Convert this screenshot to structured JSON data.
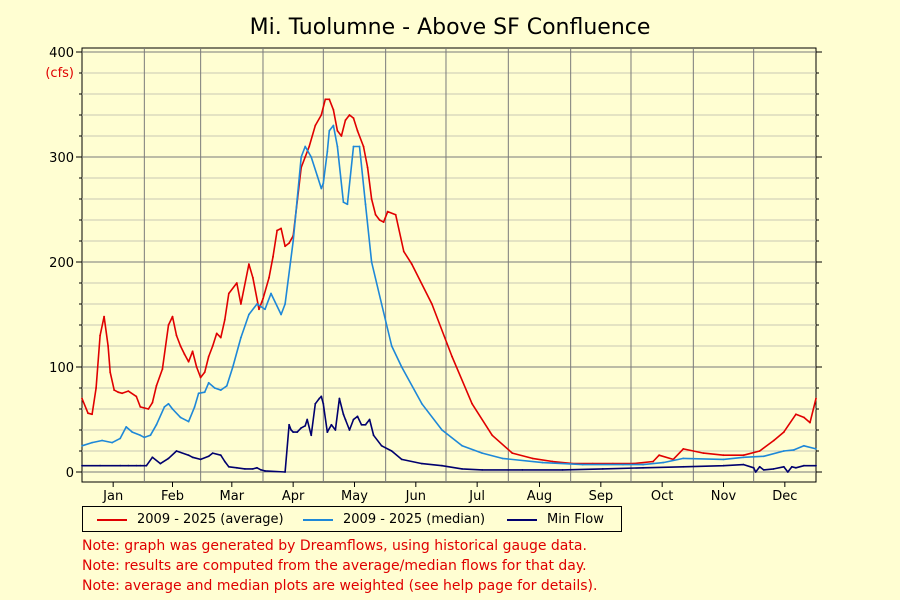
{
  "chart_data": {
    "type": "line",
    "title": "Mi. Tuolumne - Above SF Confluence",
    "ylabel": "(cfs)",
    "xlabel": "",
    "ylim": [
      0,
      400
    ],
    "yticks": [
      0,
      100,
      200,
      300,
      400
    ],
    "xlim": [
      1,
      366
    ],
    "grid": true,
    "legend_position": "bottom",
    "month_labels": [
      "Jan",
      "Feb",
      "Mar",
      "Apr",
      "May",
      "Jun",
      "Jul",
      "Aug",
      "Sep",
      "Oct",
      "Nov",
      "Dec"
    ],
    "series": [
      {
        "name": "2009 - 2025 (average)",
        "color": "#e00000",
        "x": [
          1,
          4,
          6,
          8,
          10,
          12,
          14,
          15,
          17,
          19,
          21,
          24,
          28,
          30,
          34,
          36,
          38,
          41,
          44,
          46,
          48,
          50,
          52,
          54,
          56,
          58,
          60,
          62,
          64,
          66,
          68,
          70,
          72,
          74,
          78,
          80,
          84,
          86,
          89,
          91,
          94,
          96,
          98,
          100,
          102,
          104,
          106,
          110,
          112,
          114,
          117,
          120,
          122,
          124,
          126,
          128,
          130,
          132,
          134,
          136,
          138,
          141,
          143,
          145,
          147,
          149,
          151,
          153,
          157,
          161,
          165,
          175,
          185,
          195,
          205,
          215,
          225,
          235,
          245,
          255,
          265,
          275,
          285,
          288,
          295,
          300,
          310,
          320,
          330,
          338,
          345,
          350,
          356,
          360,
          363,
          366
        ],
        "values": [
          70,
          56,
          55,
          80,
          130,
          148,
          120,
          95,
          78,
          76,
          75,
          77,
          72,
          62,
          60,
          66,
          82,
          98,
          140,
          148,
          130,
          120,
          112,
          105,
          115,
          100,
          90,
          95,
          110,
          120,
          132,
          128,
          145,
          170,
          180,
          160,
          198,
          185,
          155,
          165,
          185,
          205,
          230,
          232,
          215,
          218,
          225,
          290,
          300,
          310,
          330,
          340,
          355,
          355,
          345,
          325,
          320,
          335,
          340,
          337,
          325,
          310,
          290,
          260,
          245,
          240,
          238,
          248,
          245,
          210,
          198,
          160,
          110,
          65,
          35,
          18,
          13,
          10,
          8,
          8,
          8,
          8,
          10,
          16,
          12,
          22,
          18,
          16,
          16,
          20,
          30,
          38,
          55,
          52,
          47,
          70
        ]
      },
      {
        "name": "2009 - 2025 (median)",
        "color": "#1e88d8",
        "x": [
          1,
          6,
          11,
          16,
          20,
          23,
          26,
          30,
          32,
          35,
          38,
          42,
          44,
          46,
          50,
          54,
          57,
          59,
          62,
          64,
          67,
          70,
          73,
          76,
          80,
          84,
          88,
          92,
          95,
          100,
          102,
          106,
          108,
          110,
          112,
          115,
          118,
          120,
          121,
          123,
          124,
          126,
          128,
          131,
          133,
          136,
          139,
          142,
          145,
          150,
          155,
          160,
          170,
          180,
          190,
          200,
          210,
          230,
          250,
          270,
          280,
          290,
          300,
          320,
          330,
          340,
          350,
          355,
          360,
          366
        ],
        "values": [
          25,
          28,
          30,
          28,
          32,
          43,
          38,
          35,
          33,
          35,
          45,
          62,
          65,
          60,
          52,
          48,
          62,
          75,
          76,
          85,
          80,
          78,
          82,
          100,
          128,
          150,
          160,
          155,
          170,
          150,
          160,
          220,
          260,
          300,
          310,
          300,
          282,
          270,
          275,
          305,
          325,
          330,
          310,
          257,
          255,
          310,
          310,
          255,
          200,
          160,
          120,
          100,
          65,
          40,
          25,
          18,
          13,
          9,
          7,
          7,
          7,
          9,
          13,
          12,
          14,
          15,
          20,
          21,
          25,
          22
        ]
      },
      {
        "name": "Min Flow",
        "color": "#00006e",
        "x": [
          1,
          10,
          20,
          24,
          28,
          30,
          33,
          36,
          40,
          44,
          48,
          54,
          56,
          60,
          64,
          66,
          70,
          72,
          74,
          78,
          82,
          86,
          88,
          90,
          92,
          102,
          104,
          105,
          106,
          108,
          110,
          112,
          113,
          115,
          117,
          119,
          120,
          121,
          123,
          125,
          127,
          129,
          131,
          132,
          134,
          136,
          138,
          140,
          142,
          144,
          146,
          150,
          155,
          160,
          170,
          180,
          190,
          200,
          220,
          240,
          260,
          280,
          300,
          320,
          330,
          335,
          336,
          338,
          340,
          345,
          350,
          352,
          354,
          356,
          360,
          366
        ],
        "values": [
          6,
          6,
          6,
          6,
          6,
          6,
          6,
          14,
          8,
          13,
          20,
          16,
          14,
          12,
          15,
          18,
          16,
          10,
          5,
          4,
          3,
          3,
          4,
          2,
          1,
          0,
          45,
          40,
          38,
          38,
          42,
          44,
          50,
          35,
          65,
          70,
          72,
          65,
          38,
          45,
          40,
          70,
          55,
          50,
          40,
          50,
          53,
          45,
          45,
          50,
          35,
          25,
          20,
          12,
          8,
          6,
          3,
          2,
          2,
          2,
          3,
          4,
          5,
          6,
          7,
          4,
          0,
          5,
          2,
          3,
          5,
          0,
          5,
          4,
          6,
          6
        ]
      }
    ]
  },
  "legend": {
    "items": [
      {
        "label": "2009 - 2025 (average)",
        "color": "#e00000"
      },
      {
        "label": "2009 - 2025 (median)",
        "color": "#1e88d8"
      },
      {
        "label": "Min Flow",
        "color": "#00006e"
      }
    ]
  },
  "notes": [
    "Note: graph was generated by Dreamflows, using historical gauge data.",
    "Note: results are computed from the average/median flows for that day.",
    "Note: average and median plots are weighted (see help page for details)."
  ],
  "colors": {
    "background": "#fffed2",
    "note_text": "#e00000",
    "axis_unit": "#e00000"
  }
}
